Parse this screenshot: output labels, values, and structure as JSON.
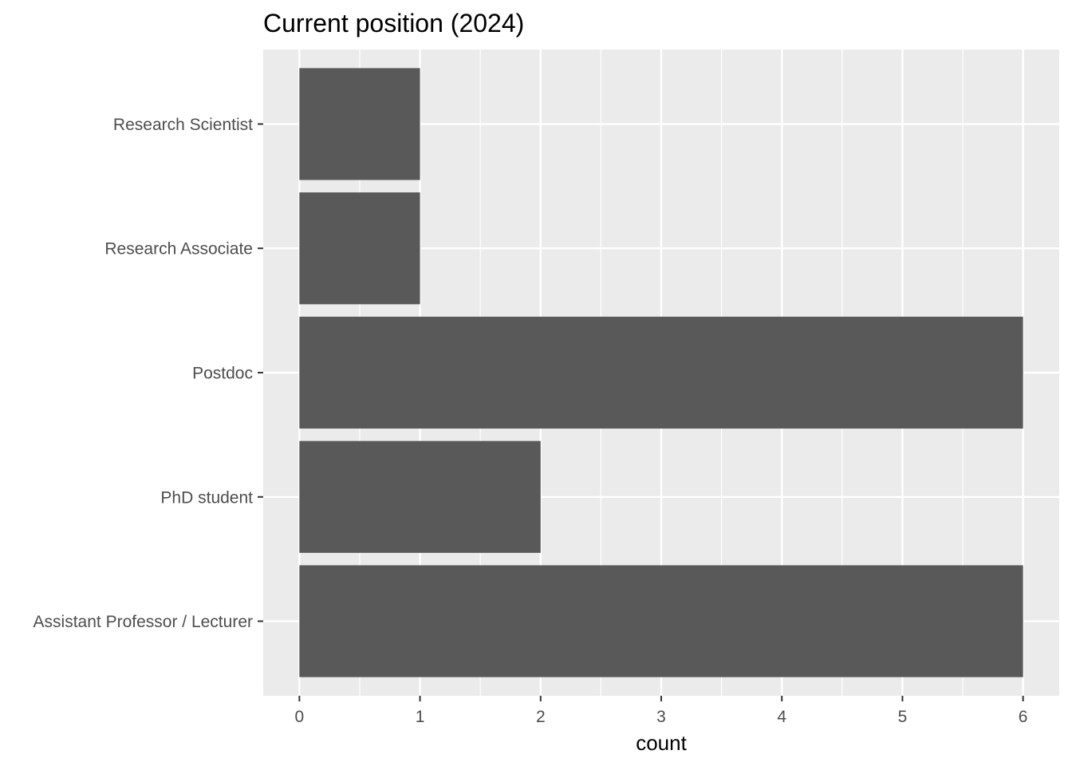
{
  "chart_data": {
    "type": "bar",
    "orientation": "horizontal",
    "title": "Current position (2024)",
    "xlabel": "count",
    "ylabel": "",
    "categories": [
      "Assistant Professor / Lecturer",
      "PhD student",
      "Postdoc",
      "Research Associate",
      "Research Scientist"
    ],
    "values": [
      6,
      2,
      6,
      1,
      1
    ],
    "xlim": [
      -0.3,
      6.3
    ],
    "x_ticks": [
      "0",
      "1",
      "2",
      "3",
      "4",
      "5",
      "6"
    ],
    "grid": true,
    "legend": "none",
    "colors": {
      "bar": "#595959",
      "panel": "#ebebeb",
      "grid": "#ffffff",
      "tick_text": "#4d4d4d",
      "tick_mark": "#333333"
    }
  }
}
